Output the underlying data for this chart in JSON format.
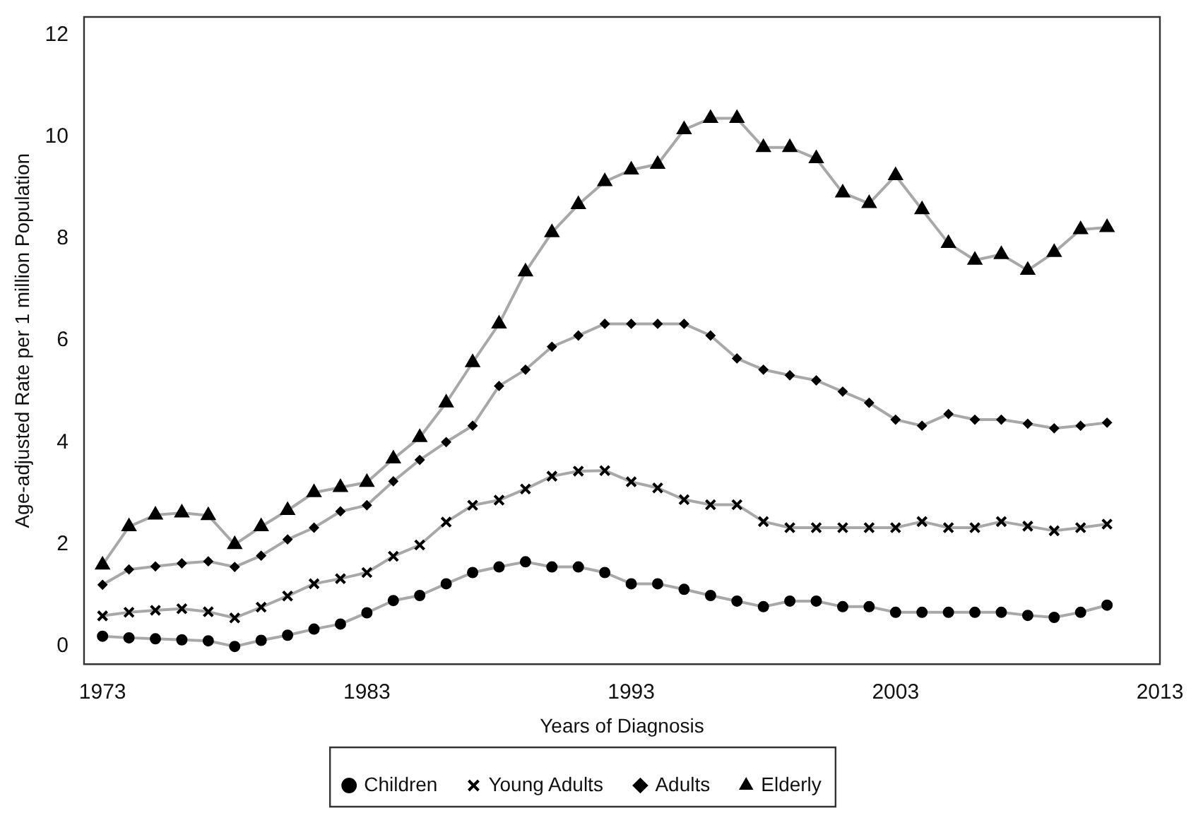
{
  "chart_data": {
    "type": "line",
    "xlabel": "Years of Diagnosis",
    "ylabel": "Age-adjusted Rate per 1 million Population",
    "x": [
      1973,
      1974,
      1975,
      1976,
      1977,
      1978,
      1979,
      1980,
      1981,
      1982,
      1983,
      1984,
      1985,
      1986,
      1987,
      1988,
      1989,
      1990,
      1991,
      1992,
      1993,
      1994,
      1995,
      1996,
      1997,
      1998,
      1999,
      2000,
      2001,
      2002,
      2003,
      2004,
      2005,
      2006,
      2007,
      2008,
      2009,
      2010,
      2011
    ],
    "xlim": [
      1972.3,
      2013
    ],
    "xticks": [
      1973,
      1983,
      1993,
      2003,
      2013
    ],
    "ylim": [
      -0.35,
      12.35
    ],
    "yticks": [
      0,
      2,
      4,
      6,
      8,
      10,
      12
    ],
    "grid": false,
    "legend": "bottom",
    "line_style": "solid",
    "series": [
      {
        "name": "Children",
        "color": "#a8a8a8",
        "marker": "circle",
        "values": [
          0.2,
          0.17,
          0.15,
          0.13,
          0.11,
          0,
          0.12,
          0.22,
          0.34,
          0.44,
          0.66,
          0.9,
          1.0,
          1.23,
          1.45,
          1.56,
          1.66,
          1.56,
          1.56,
          1.45,
          1.23,
          1.23,
          1.12,
          1.0,
          0.89,
          0.78,
          0.89,
          0.89,
          0.78,
          0.78,
          0.67,
          0.67,
          0.67,
          0.67,
          0.67,
          0.61,
          0.57,
          0.67,
          0.81
        ]
      },
      {
        "name": "Young Adults",
        "color": "#a8a8a8",
        "marker": "cross",
        "values": [
          0.6,
          0.67,
          0.71,
          0.74,
          0.68,
          0.56,
          0.77,
          0.99,
          1.23,
          1.33,
          1.45,
          1.77,
          1.99,
          2.44,
          2.77,
          2.87,
          3.09,
          3.34,
          3.44,
          3.45,
          3.23,
          3.11,
          2.88,
          2.78,
          2.78,
          2.45,
          2.33,
          2.33,
          2.33,
          2.33,
          2.33,
          2.45,
          2.33,
          2.33,
          2.45,
          2.36,
          2.27,
          2.33,
          2.4
        ]
      },
      {
        "name": "Adults",
        "color": "#a8a8a8",
        "marker": "diamond",
        "values": [
          1.21,
          1.51,
          1.57,
          1.63,
          1.67,
          1.56,
          1.78,
          2.1,
          2.33,
          2.65,
          2.77,
          3.24,
          3.66,
          4.01,
          4.33,
          5.11,
          5.43,
          5.88,
          6.1,
          6.33,
          6.33,
          6.33,
          6.33,
          6.1,
          5.65,
          5.43,
          5.32,
          5.22,
          5.0,
          4.78,
          4.45,
          4.33,
          4.56,
          4.45,
          4.45,
          4.37,
          4.28,
          4.33,
          4.39
        ]
      },
      {
        "name": "Elderly",
        "color": "#a8a8a8",
        "marker": "triangle",
        "values": [
          1.6,
          2.35,
          2.58,
          2.62,
          2.57,
          2.0,
          2.35,
          2.67,
          3.02,
          3.12,
          3.22,
          3.68,
          4.1,
          4.78,
          5.57,
          6.33,
          7.35,
          8.12,
          8.67,
          9.12,
          9.35,
          9.46,
          10.14,
          10.36,
          10.36,
          9.79,
          9.79,
          9.57,
          8.9,
          8.69,
          9.24,
          8.57,
          7.91,
          7.58,
          7.69,
          7.38,
          7.73,
          8.18,
          8.22
        ]
      }
    ]
  }
}
